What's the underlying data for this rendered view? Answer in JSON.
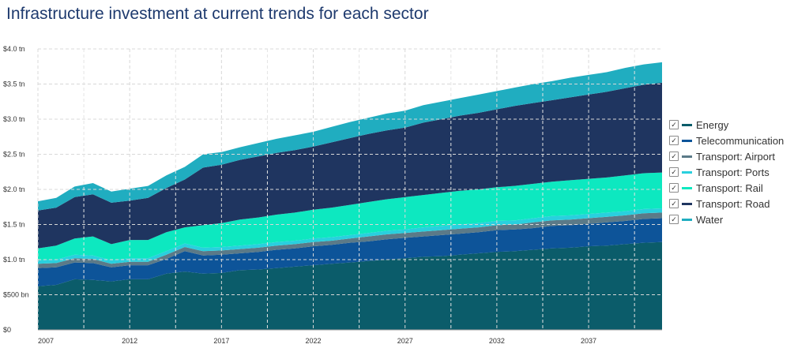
{
  "colors": {
    "Energy": "#0b5c6a",
    "Telecommunication": "#0d5499",
    "Transport: Airport": "#5b7a88",
    "Transport: Ports": "#29d0de",
    "Transport: Rail": "#0de8c0",
    "Transport: Road": "#1f3560",
    "Water": "#20adc0"
  },
  "chart_data": {
    "type": "area",
    "stacked": true,
    "title": "Infrastructure investment at current trends for each sector",
    "xlim": [
      2007,
      2041
    ],
    "ylim": [
      0,
      4.0
    ],
    "x_ticks": [
      2007,
      2012,
      2017,
      2022,
      2027,
      2032,
      2037
    ],
    "y_ticks": [
      {
        "value": 0,
        "label": "$0"
      },
      {
        "value": 0.5,
        "label": "$500 bn"
      },
      {
        "value": 1.0,
        "label": "$1.0 tn"
      },
      {
        "value": 1.5,
        "label": "$1.5 tn"
      },
      {
        "value": 2.0,
        "label": "$2.0 tn"
      },
      {
        "value": 2.5,
        "label": "$2.5 tn"
      },
      {
        "value": 3.0,
        "label": "$3.0 tn"
      },
      {
        "value": 3.5,
        "label": "$3.5 tn"
      },
      {
        "value": 4.0,
        "label": "$4.0 tn"
      }
    ],
    "grid": true,
    "legend_position": "right",
    "x": [
      2007,
      2008,
      2009,
      2010,
      2011,
      2012,
      2013,
      2014,
      2015,
      2016,
      2017,
      2018,
      2019,
      2020,
      2021,
      2022,
      2023,
      2024,
      2025,
      2026,
      2027,
      2028,
      2029,
      2030,
      2031,
      2032,
      2033,
      2034,
      2035,
      2036,
      2037,
      2038,
      2039,
      2040,
      2041
    ],
    "series": [
      {
        "name": "Energy",
        "values": [
          0.62,
          0.64,
          0.72,
          0.71,
          0.69,
          0.72,
          0.72,
          0.8,
          0.83,
          0.8,
          0.81,
          0.85,
          0.86,
          0.88,
          0.9,
          0.92,
          0.94,
          0.96,
          0.98,
          1.0,
          1.02,
          1.04,
          1.05,
          1.07,
          1.09,
          1.11,
          1.12,
          1.14,
          1.16,
          1.17,
          1.19,
          1.2,
          1.22,
          1.24,
          1.25
        ]
      },
      {
        "name": "Telecommunication",
        "values": [
          0.26,
          0.25,
          0.24,
          0.24,
          0.2,
          0.2,
          0.2,
          0.21,
          0.29,
          0.26,
          0.26,
          0.24,
          0.25,
          0.26,
          0.26,
          0.27,
          0.27,
          0.28,
          0.28,
          0.29,
          0.29,
          0.29,
          0.3,
          0.3,
          0.3,
          0.31,
          0.31,
          0.31,
          0.32,
          0.32,
          0.32,
          0.33,
          0.33,
          0.34,
          0.34
        ]
      },
      {
        "name": "Transport: Airport",
        "values": [
          0.06,
          0.06,
          0.06,
          0.06,
          0.05,
          0.05,
          0.05,
          0.06,
          0.06,
          0.06,
          0.06,
          0.06,
          0.06,
          0.06,
          0.06,
          0.06,
          0.06,
          0.06,
          0.07,
          0.07,
          0.07,
          0.07,
          0.07,
          0.07,
          0.07,
          0.07,
          0.07,
          0.08,
          0.08,
          0.08,
          0.08,
          0.08,
          0.08,
          0.08,
          0.08
        ]
      },
      {
        "name": "Transport: Ports",
        "values": [
          0.05,
          0.05,
          0.05,
          0.05,
          0.05,
          0.05,
          0.05,
          0.05,
          0.05,
          0.05,
          0.05,
          0.05,
          0.05,
          0.05,
          0.05,
          0.05,
          0.05,
          0.05,
          0.05,
          0.05,
          0.05,
          0.06,
          0.06,
          0.06,
          0.06,
          0.06,
          0.06,
          0.06,
          0.06,
          0.06,
          0.06,
          0.06,
          0.06,
          0.06,
          0.06
        ]
      },
      {
        "name": "Transport: Rail",
        "values": [
          0.17,
          0.2,
          0.23,
          0.27,
          0.23,
          0.26,
          0.26,
          0.27,
          0.23,
          0.32,
          0.34,
          0.37,
          0.38,
          0.39,
          0.4,
          0.41,
          0.42,
          0.43,
          0.44,
          0.45,
          0.46,
          0.46,
          0.47,
          0.48,
          0.48,
          0.48,
          0.49,
          0.49,
          0.49,
          0.5,
          0.5,
          0.5,
          0.51,
          0.51,
          0.51
        ]
      },
      {
        "name": "Transport: Road",
        "values": [
          0.54,
          0.54,
          0.59,
          0.6,
          0.59,
          0.56,
          0.6,
          0.63,
          0.68,
          0.82,
          0.83,
          0.85,
          0.87,
          0.88,
          0.89,
          0.9,
          0.93,
          0.95,
          0.97,
          0.98,
          0.99,
          1.03,
          1.05,
          1.07,
          1.09,
          1.11,
          1.14,
          1.15,
          1.16,
          1.18,
          1.2,
          1.22,
          1.24,
          1.26,
          1.28
        ]
      },
      {
        "name": "Water",
        "values": [
          0.13,
          0.14,
          0.15,
          0.16,
          0.16,
          0.17,
          0.17,
          0.18,
          0.18,
          0.19,
          0.18,
          0.18,
          0.19,
          0.2,
          0.21,
          0.21,
          0.22,
          0.23,
          0.23,
          0.24,
          0.24,
          0.25,
          0.25,
          0.25,
          0.26,
          0.26,
          0.26,
          0.27,
          0.27,
          0.28,
          0.28,
          0.28,
          0.29,
          0.29,
          0.29
        ]
      }
    ]
  }
}
